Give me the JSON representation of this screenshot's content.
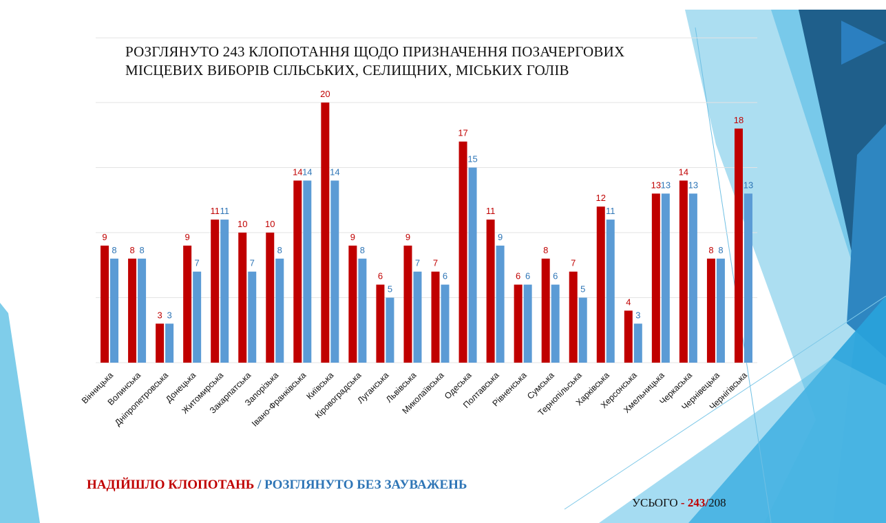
{
  "slide": {
    "title_line1": "РОЗГЛЯНУТО 243 КЛОПОТАННЯ ЩОДО ПРИЗНАЧЕННЯ ПОЗАЧЕРГОВИХ",
    "title_line2": "МІСЦЕВИХ ВИБОРІВ СІЛЬСЬКИХ, СЕЛИЩНИХ, МІСЬКИХ ГОЛІВ",
    "legend_received": "НАДІЙШЛО КЛОПОТАНЬ",
    "legend_separator": "/",
    "legend_reviewed": "РОЗГЛЯНУТО БЕЗ ЗАУВАЖЕНЬ",
    "total_label": "УСЬОГО",
    "total_dash": "-",
    "total_received": "243/",
    "total_reviewed": "208"
  },
  "colors": {
    "received": "#c00000",
    "reviewed": "#5b9bd5",
    "reviewed_label": "#2e75b6",
    "grid": "#e3e3e3",
    "deco_dark": "#1f5f8b",
    "deco_mid": "#2e86c1",
    "deco_light": "#87ceeb"
  },
  "chart_data": {
    "type": "bar",
    "categories": [
      "Вінницька",
      "Волинська",
      "Дніпропетровська",
      "Донецька",
      "Житомирська",
      "Закарпатська",
      "Запорізька",
      "Івано-Франківська",
      "Київська",
      "Кіровоградська",
      "Луганська",
      "Львівська",
      "Миколаївська",
      "Одеська",
      "Полтавська",
      "Рівненська",
      "Сумська",
      "Тернопільська",
      "Харківська",
      "Херсонська",
      "Хмельницька",
      "Черкаська",
      "Чернівецька",
      "Чернігівська"
    ],
    "series": [
      {
        "name": "НАДІЙШЛО КЛОПОТАНЬ",
        "values": [
          9,
          8,
          3,
          9,
          11,
          10,
          10,
          14,
          20,
          9,
          6,
          9,
          7,
          17,
          11,
          6,
          8,
          7,
          12,
          4,
          13,
          14,
          8,
          18
        ]
      },
      {
        "name": "РОЗГЛЯНУТО БЕЗ ЗАУВАЖЕНЬ",
        "values": [
          8,
          8,
          3,
          7,
          11,
          7,
          8,
          14,
          14,
          8,
          5,
          7,
          6,
          15,
          9,
          6,
          6,
          5,
          11,
          3,
          13,
          13,
          8,
          13
        ]
      }
    ],
    "ylim": [
      0,
      20
    ],
    "grid": true,
    "data_labels": true,
    "legend_position": "bottom-left"
  }
}
